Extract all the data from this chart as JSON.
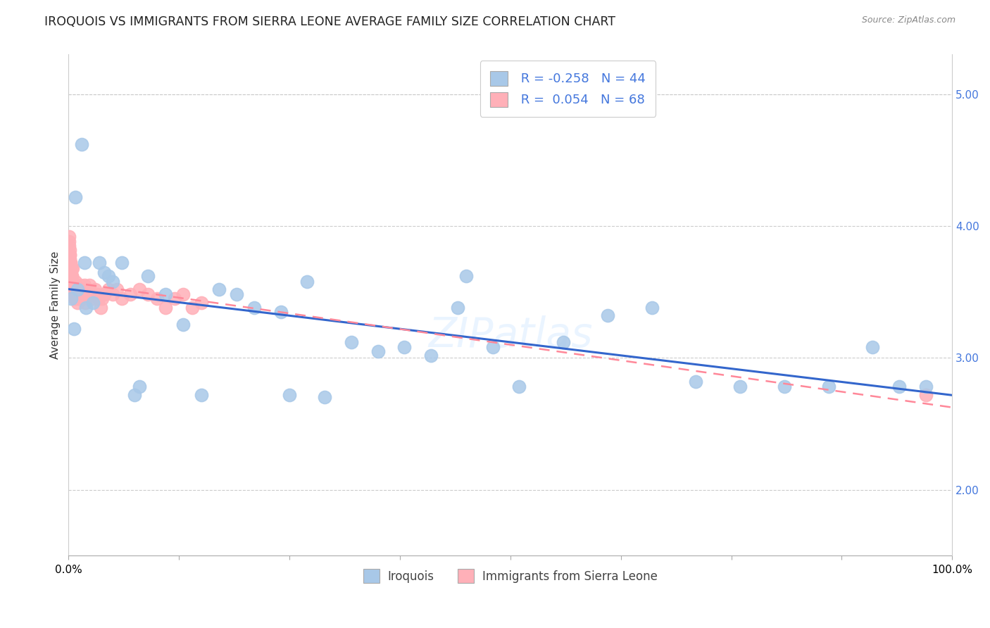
{
  "title": "IROQUOIS VS IMMIGRANTS FROM SIERRA LEONE AVERAGE FAMILY SIZE CORRELATION CHART",
  "source": "Source: ZipAtlas.com",
  "ylabel": "Average Family Size",
  "legend_label1": "Iroquois",
  "legend_label2": "Immigrants from Sierra Leone",
  "blue_scatter_color": "#A8C8E8",
  "pink_scatter_color": "#FFB0B8",
  "blue_line_color": "#3366CC",
  "pink_line_color": "#FF8899",
  "tick_color": "#4477DD",
  "iroquois_x": [
    0.3,
    0.6,
    1.0,
    1.5,
    2.0,
    2.8,
    3.5,
    4.5,
    5.0,
    6.0,
    7.5,
    9.0,
    11.0,
    13.0,
    15.0,
    17.0,
    19.0,
    21.0,
    24.0,
    27.0,
    29.0,
    32.0,
    35.0,
    38.0,
    41.0,
    44.0,
    48.0,
    51.0,
    56.0,
    61.0,
    66.0,
    71.0,
    76.0,
    81.0,
    86.0,
    91.0,
    94.0,
    97.0,
    0.8,
    1.8,
    4.0,
    8.0,
    25.0,
    45.0
  ],
  "iroquois_y": [
    3.45,
    3.22,
    3.52,
    4.62,
    3.38,
    3.42,
    3.72,
    3.62,
    3.58,
    3.72,
    2.72,
    3.62,
    3.48,
    3.25,
    2.72,
    3.52,
    3.48,
    3.38,
    3.35,
    3.58,
    2.7,
    3.12,
    3.05,
    3.08,
    3.02,
    3.38,
    3.08,
    2.78,
    3.12,
    3.32,
    3.38,
    2.82,
    2.78,
    2.78,
    2.78,
    3.08,
    2.78,
    2.78,
    4.22,
    3.72,
    3.65,
    2.78,
    2.72,
    3.62
  ],
  "sierra_x": [
    0.05,
    0.08,
    0.1,
    0.12,
    0.15,
    0.18,
    0.2,
    0.22,
    0.25,
    0.28,
    0.3,
    0.32,
    0.35,
    0.38,
    0.4,
    0.42,
    0.45,
    0.48,
    0.5,
    0.55,
    0.6,
    0.65,
    0.7,
    0.75,
    0.8,
    0.85,
    0.9,
    0.95,
    1.0,
    1.1,
    1.2,
    1.3,
    1.4,
    1.5,
    1.6,
    1.7,
    1.8,
    1.9,
    2.0,
    2.2,
    2.4,
    2.6,
    2.8,
    3.0,
    3.2,
    3.4,
    3.6,
    3.8,
    4.0,
    4.5,
    5.0,
    5.5,
    6.0,
    7.0,
    8.0,
    9.0,
    10.0,
    11.0,
    12.0,
    13.0,
    14.0,
    15.0,
    0.06,
    0.14,
    0.24,
    0.36,
    0.46,
    97.0
  ],
  "sierra_y": [
    3.88,
    3.92,
    3.82,
    3.78,
    3.75,
    3.72,
    3.65,
    3.7,
    3.62,
    3.58,
    3.55,
    3.52,
    3.62,
    3.68,
    3.58,
    3.55,
    3.5,
    3.48,
    3.52,
    3.55,
    3.5,
    3.48,
    3.45,
    3.52,
    3.58,
    3.5,
    3.48,
    3.45,
    3.42,
    3.52,
    3.48,
    3.55,
    3.5,
    3.45,
    3.48,
    3.52,
    3.55,
    3.42,
    3.48,
    3.52,
    3.55,
    3.48,
    3.45,
    3.52,
    3.48,
    3.45,
    3.38,
    3.45,
    3.48,
    3.52,
    3.48,
    3.52,
    3.45,
    3.48,
    3.52,
    3.48,
    3.45,
    3.38,
    3.45,
    3.48,
    3.38,
    3.42,
    3.85,
    3.78,
    3.72,
    3.62,
    3.68,
    2.72
  ],
  "xlim": [
    0,
    100
  ],
  "ylim": [
    1.5,
    5.3
  ],
  "yticks": [
    2.0,
    3.0,
    4.0,
    5.0
  ],
  "background_color": "#ffffff",
  "grid_color": "#cccccc",
  "title_fontsize": 12.5,
  "axis_label_fontsize": 11,
  "tick_fontsize": 11
}
